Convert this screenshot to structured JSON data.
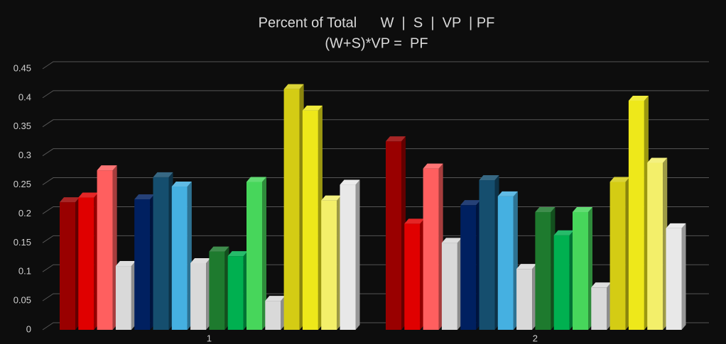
{
  "chart_data": {
    "type": "bar3d",
    "title": "Percent of Total      W  |  S  |  VP  | PF",
    "subtitle": "(W+S)*VP =  PF",
    "categories": [
      "1",
      "2"
    ],
    "ylim": [
      0,
      0.45
    ],
    "yticks": [
      0,
      0.05,
      0.1,
      0.15,
      0.2,
      0.25,
      0.3,
      0.35,
      0.4,
      0.45
    ],
    "grid": true,
    "series": [
      {
        "color": "#990000",
        "values": [
          0.22,
          0.325
        ]
      },
      {
        "color": "#e00000",
        "values": [
          0.228,
          0.183
        ]
      },
      {
        "color": "#ff5f5f",
        "values": [
          0.275,
          0.278
        ]
      },
      {
        "color": "#d9d9d9",
        "values": [
          0.11,
          0.15
        ]
      },
      {
        "color": "#002060",
        "values": [
          0.225,
          0.215
        ]
      },
      {
        "color": "#154e6e",
        "values": [
          0.263,
          0.258
        ]
      },
      {
        "color": "#45b0e1",
        "values": [
          0.247,
          0.23
        ]
      },
      {
        "color": "#d9d9d9",
        "values": [
          0.115,
          0.105
        ]
      },
      {
        "color": "#1e7a2e",
        "values": [
          0.135,
          0.203
        ]
      },
      {
        "color": "#00b050",
        "values": [
          0.127,
          0.163
        ]
      },
      {
        "color": "#47d65b",
        "values": [
          0.255,
          0.203
        ]
      },
      {
        "color": "#d9d9d9",
        "values": [
          0.05,
          0.073
        ]
      },
      {
        "color": "#d4cc14",
        "values": [
          0.415,
          0.255
        ]
      },
      {
        "color": "#eee81a",
        "values": [
          0.378,
          0.395
        ]
      },
      {
        "color": "#f3ef6a",
        "values": [
          0.223,
          0.288
        ]
      },
      {
        "color": "#e8e8e8",
        "values": [
          0.25,
          0.175
        ]
      }
    ]
  }
}
